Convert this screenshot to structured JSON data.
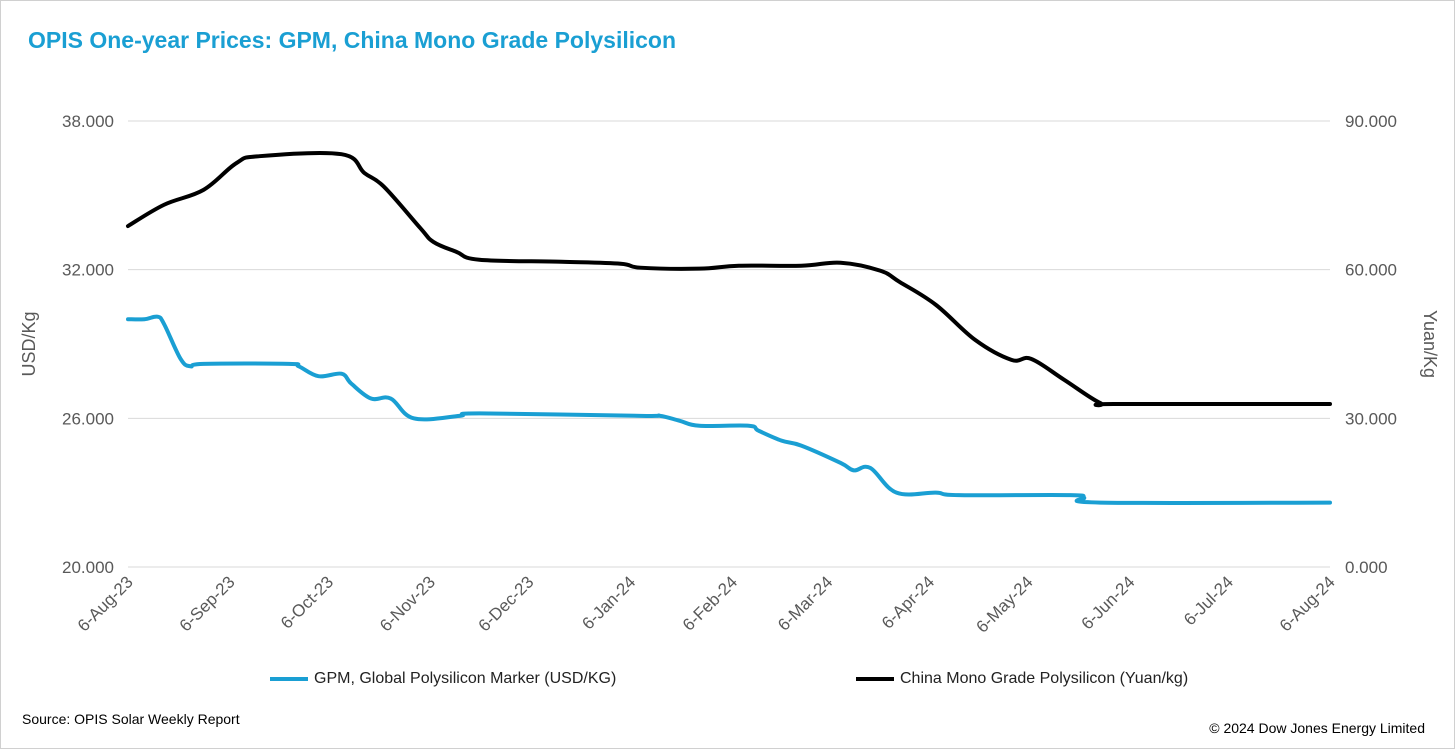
{
  "chart_data": {
    "type": "line",
    "title": "OPIS One-year Prices: GPM, China Mono Grade Polysilicon",
    "ylabel": "USD/Kg",
    "y2label": "Yuan/Kg",
    "xlim": [
      "2023-08-06",
      "2024-08-06"
    ],
    "ylim": [
      20,
      38
    ],
    "y2lim": [
      0,
      90
    ],
    "y_ticks": [
      "20.000",
      "26.000",
      "32.000",
      "38.000"
    ],
    "y2_ticks": [
      "0.000",
      "30.000",
      "60.000",
      "90.000"
    ],
    "x_ticks": [
      {
        "date": "2023-08-06",
        "label": "6-Aug-23"
      },
      {
        "date": "2023-09-06",
        "label": "6-Sep-23"
      },
      {
        "date": "2023-10-06",
        "label": "6-Oct-23"
      },
      {
        "date": "2023-11-06",
        "label": "6-Nov-23"
      },
      {
        "date": "2023-12-06",
        "label": "6-Dec-23"
      },
      {
        "date": "2024-01-06",
        "label": "6-Jan-24"
      },
      {
        "date": "2024-02-06",
        "label": "6-Feb-24"
      },
      {
        "date": "2024-03-06",
        "label": "6-Mar-24"
      },
      {
        "date": "2024-04-06",
        "label": "6-Apr-24"
      },
      {
        "date": "2024-05-06",
        "label": "6-May-24"
      },
      {
        "date": "2024-06-06",
        "label": "6-Jun-24"
      },
      {
        "date": "2024-07-06",
        "label": "6-Jul-24"
      },
      {
        "date": "2024-08-06",
        "label": "6-Aug-24"
      }
    ],
    "grid": true,
    "legend_position": "bottom",
    "series": [
      {
        "name": "GPM, Global Polysilicon Marker (USD/KG)",
        "axis": "left",
        "color": "#1a9fd3",
        "points": [
          [
            "2023-08-06",
            30.0
          ],
          [
            "2023-08-11",
            30.0
          ],
          [
            "2023-08-15",
            30.1
          ],
          [
            "2023-08-17",
            29.8
          ],
          [
            "2023-08-22",
            28.4
          ],
          [
            "2023-08-25",
            28.1
          ],
          [
            "2023-08-29",
            28.2
          ],
          [
            "2023-09-24",
            28.2
          ],
          [
            "2023-09-27",
            28.1
          ],
          [
            "2023-10-03",
            27.7
          ],
          [
            "2023-10-10",
            27.8
          ],
          [
            "2023-10-13",
            27.4
          ],
          [
            "2023-10-19",
            26.8
          ],
          [
            "2023-10-25",
            26.8
          ],
          [
            "2023-11-01",
            26.0
          ],
          [
            "2023-11-15",
            26.1
          ],
          [
            "2023-11-21",
            26.2
          ],
          [
            "2024-01-09",
            26.1
          ],
          [
            "2024-01-15",
            26.1
          ],
          [
            "2024-01-21",
            25.9
          ],
          [
            "2024-01-27",
            25.7
          ],
          [
            "2024-02-11",
            25.7
          ],
          [
            "2024-02-14",
            25.5
          ],
          [
            "2024-02-21",
            25.1
          ],
          [
            "2024-02-27",
            24.9
          ],
          [
            "2024-03-10",
            24.2
          ],
          [
            "2024-03-14",
            23.9
          ],
          [
            "2024-03-19",
            24.0
          ],
          [
            "2024-03-27",
            23.0
          ],
          [
            "2024-04-08",
            23.0
          ],
          [
            "2024-04-15",
            22.9
          ],
          [
            "2024-05-19",
            22.9
          ],
          [
            "2024-05-23",
            22.8
          ],
          [
            "2024-05-28",
            22.6
          ],
          [
            "2024-08-06",
            22.6
          ]
        ]
      },
      {
        "name": "China Mono Grade Polysilicon (Yuan/kg)",
        "axis": "right",
        "color": "#000000",
        "points": [
          [
            "2023-08-06",
            68.8
          ],
          [
            "2023-08-17",
            73.1
          ],
          [
            "2023-08-29",
            76.1
          ],
          [
            "2023-09-08",
            81.5
          ],
          [
            "2023-09-15",
            82.9
          ],
          [
            "2023-10-10",
            83.3
          ],
          [
            "2023-10-17",
            79.5
          ],
          [
            "2023-10-23",
            76.7
          ],
          [
            "2023-11-03",
            68.4
          ],
          [
            "2023-11-07",
            65.6
          ],
          [
            "2023-11-14",
            63.6
          ],
          [
            "2023-11-21",
            62.0
          ],
          [
            "2023-12-16",
            61.6
          ],
          [
            "2024-01-03",
            61.2
          ],
          [
            "2024-01-09",
            60.4
          ],
          [
            "2024-01-27",
            60.2
          ],
          [
            "2024-02-08",
            60.8
          ],
          [
            "2024-02-27",
            60.8
          ],
          [
            "2024-03-10",
            61.4
          ],
          [
            "2024-03-22",
            59.8
          ],
          [
            "2024-03-28",
            57.5
          ],
          [
            "2024-04-08",
            52.9
          ],
          [
            "2024-04-20",
            45.8
          ],
          [
            "2024-05-01",
            41.8
          ],
          [
            "2024-05-07",
            42.0
          ],
          [
            "2024-05-17",
            37.8
          ],
          [
            "2024-05-28",
            33.1
          ],
          [
            "2024-06-02",
            32.9
          ],
          [
            "2024-08-06",
            32.9
          ]
        ]
      }
    ]
  },
  "footer": {
    "source": "Source: OPIS Solar Weekly Report",
    "copyright": "© 2024 Dow Jones Energy Limited"
  }
}
